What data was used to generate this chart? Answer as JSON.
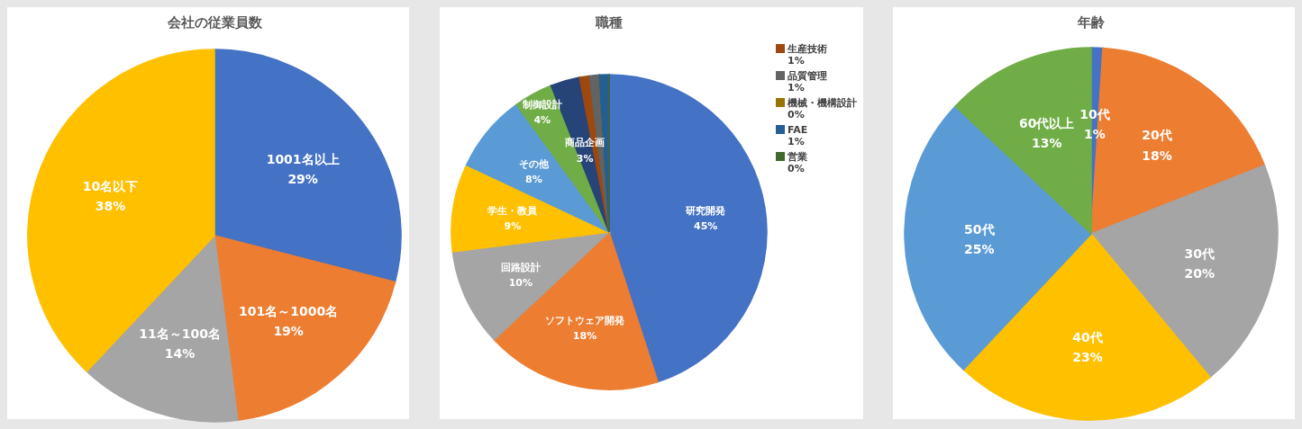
{
  "chart_data": [
    {
      "type": "pie",
      "title": "会社の従業員数",
      "categories": [
        "1001名以上",
        "101名～1000名",
        "11名～100名",
        "10名以下"
      ],
      "values": [
        29,
        19,
        14,
        38
      ],
      "colors": [
        "#4472c4",
        "#ed7d31",
        "#a5a5a5",
        "#ffc000"
      ],
      "value_labels": [
        "29%",
        "19%",
        "14%",
        "38%"
      ]
    },
    {
      "type": "pie",
      "title": "職種",
      "categories": [
        "研究開発",
        "ソフトウェア開発",
        "回路設計",
        "学生・教員",
        "その他",
        "制御設計",
        "商品企画",
        "生産技術",
        "品質管理",
        "機械・機構設計",
        "FAE",
        "営業"
      ],
      "values": [
        45,
        18,
        10,
        9,
        8,
        4,
        3,
        1,
        1,
        0,
        1,
        0
      ],
      "colors": [
        "#4472c4",
        "#ed7d31",
        "#a5a5a5",
        "#ffc000",
        "#5b9bd5",
        "#70ad47",
        "#264478",
        "#9e480e",
        "#636363",
        "#997300",
        "#255e91",
        "#43682b"
      ],
      "value_labels": [
        "45%",
        "18%",
        "10%",
        "9%",
        "8%",
        "4%",
        "3%",
        "1%",
        "1%",
        "0%",
        "1%",
        "0%"
      ],
      "legend": "top right"
    },
    {
      "type": "pie",
      "title": "年齢",
      "categories": [
        "10代",
        "20代",
        "30代",
        "40代",
        "50代",
        "60代以上"
      ],
      "values": [
        1,
        18,
        20,
        23,
        25,
        13
      ],
      "colors": [
        "#4472c4",
        "#ed7d31",
        "#a5a5a5",
        "#ffc000",
        "#5b9bd5",
        "#70ad47"
      ],
      "value_labels": [
        "1%",
        "18%",
        "20%",
        "23%",
        "25%",
        "13%"
      ]
    }
  ]
}
